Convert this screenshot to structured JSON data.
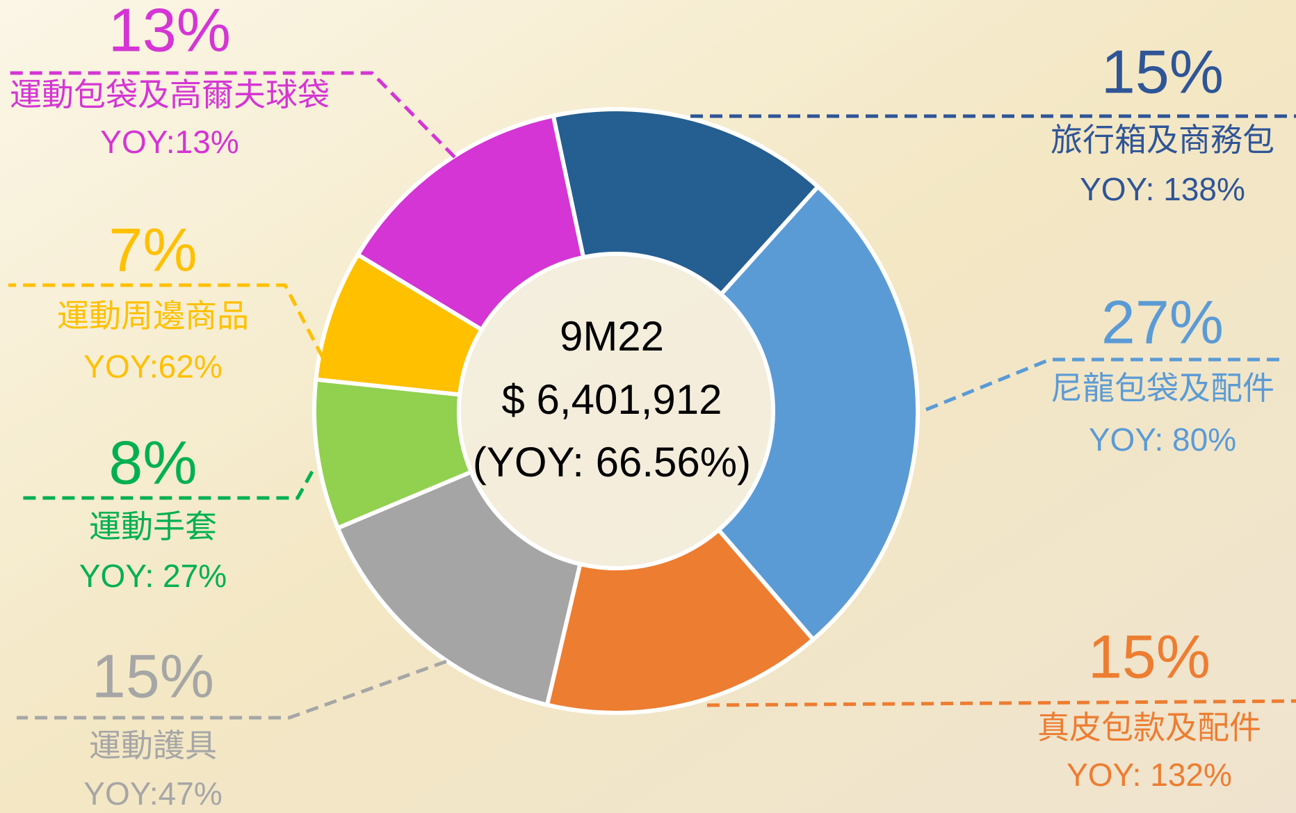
{
  "chart_data": {
    "type": "donut",
    "center_labels": [
      "9M22",
      "$ 6,401,912",
      "(YOY:  66.56%)"
    ],
    "categories": [
      "旅行箱及商務包",
      "尼龍包袋及配件",
      "真皮包款及配件",
      "運動護具",
      "運動手套",
      "運動周邊商品",
      "運動包袋及高爾夫球袋"
    ],
    "values": [
      15,
      27,
      15,
      15,
      8,
      7,
      13
    ],
    "value_labels": [
      "15%",
      "27%",
      "15%",
      "15%",
      "8%",
      "7%",
      "13%"
    ],
    "yoy_labels": [
      "YOY:  138%",
      "YOY: 80%",
      "YOY: 132%",
      "YOY:47%",
      "YOY:  27%",
      "YOY:62%",
      "YOY:13%"
    ],
    "colors": [
      "#255e91",
      "#5b9bd5",
      "#ed7d31",
      "#a5a5a5",
      "#92d050",
      "#ffc000",
      "#d435d4"
    ],
    "label_colors": [
      "#2f5597",
      "#5b9bd5",
      "#ed7d31",
      "#a6a6a6",
      "#00b050",
      "#ffc000",
      "#d435d4"
    ]
  }
}
